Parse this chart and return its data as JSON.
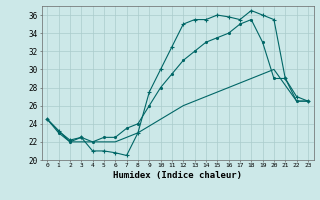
{
  "xlabel": "Humidex (Indice chaleur)",
  "bg_color": "#cce8e8",
  "line_color": "#006666",
  "grid_color": "#aacccc",
  "xlim": [
    -0.5,
    23.5
  ],
  "ylim": [
    20,
    37
  ],
  "line1_x": [
    0,
    1,
    2,
    3,
    4,
    5,
    6,
    7,
    8,
    9,
    10,
    11,
    12,
    13,
    14,
    15,
    16,
    17,
    18,
    19,
    20,
    21,
    22,
    23
  ],
  "line1_y": [
    24.5,
    23.2,
    22.2,
    22.5,
    21.0,
    21.0,
    20.8,
    20.5,
    23.0,
    27.5,
    30.0,
    32.5,
    35.0,
    35.5,
    35.5,
    36.0,
    35.8,
    35.5,
    36.5,
    36.0,
    35.5,
    29.0,
    27.0,
    26.5
  ],
  "line2_x": [
    0,
    1,
    2,
    3,
    4,
    5,
    6,
    7,
    8,
    9,
    10,
    11,
    12,
    13,
    14,
    15,
    16,
    17,
    18,
    19,
    20,
    21,
    22,
    23
  ],
  "line2_y": [
    24.5,
    23.0,
    22.0,
    22.5,
    22.0,
    22.5,
    22.5,
    23.5,
    24.0,
    26.0,
    28.0,
    29.5,
    31.0,
    32.0,
    33.0,
    33.5,
    34.0,
    35.0,
    35.5,
    33.0,
    29.0,
    29.0,
    26.5,
    26.5
  ],
  "line3_x": [
    0,
    2,
    4,
    6,
    8,
    10,
    12,
    14,
    16,
    18,
    20,
    22,
    23
  ],
  "line3_y": [
    24.5,
    22.0,
    22.0,
    22.0,
    23.0,
    24.5,
    26.0,
    27.0,
    28.0,
    29.0,
    30.0,
    26.5,
    26.5
  ]
}
